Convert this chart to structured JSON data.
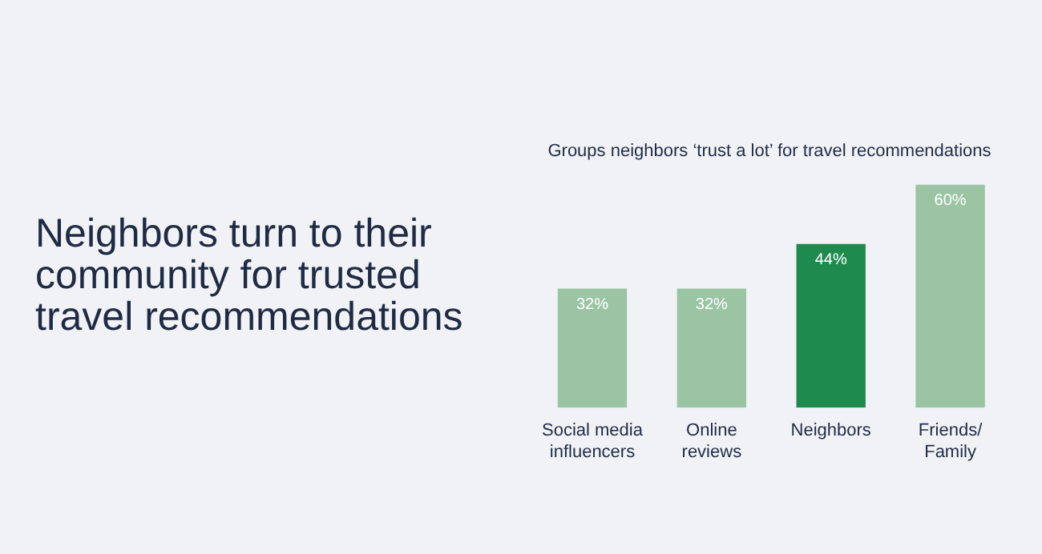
{
  "chart_data": {
    "type": "bar",
    "title": "Neighbors turn to their community for trusted travel recommendations",
    "subtitle": "Groups neighbors ‘trust a lot’ for travel recommendations",
    "categories": [
      "Social media influencers",
      "Online reviews",
      "Neighbors",
      "Friends/Family"
    ],
    "values": [
      32,
      32,
      44,
      60
    ],
    "value_labels": [
      "32%",
      "32%",
      "44%",
      "60%"
    ],
    "colors": [
      "#9ac4a3",
      "#9ac4a3",
      "#1e8a4e",
      "#9ac4a3"
    ],
    "legend": false,
    "grid": false
  }
}
